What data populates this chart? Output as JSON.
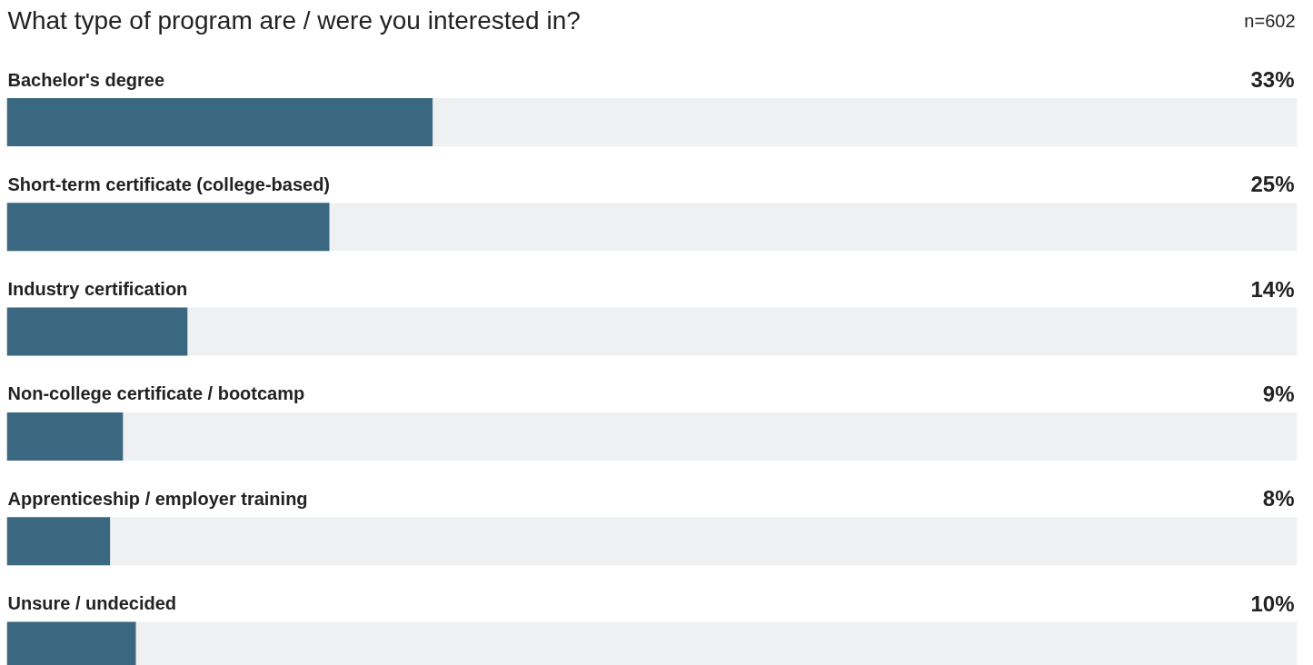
{
  "chart_data": {
    "type": "bar",
    "orientation": "horizontal",
    "title": "What type of program are / were you interested in?",
    "annotations": [
      "n=602"
    ],
    "categories": [
      "Bachelor's degree",
      "Short-term certificate (college-based)",
      "Industry certification",
      "Non-college certificate / bootcamp",
      "Apprenticeship / employer training",
      "Unsure / undecided"
    ],
    "values": [
      33,
      25,
      14,
      9,
      8,
      10
    ],
    "value_labels": [
      "33%",
      "25%",
      "14%",
      "9%",
      "8%",
      "10%"
    ],
    "color": "#3a6880",
    "xlim": [
      0,
      100
    ],
    "tick_labels": false,
    "grid": false
  }
}
